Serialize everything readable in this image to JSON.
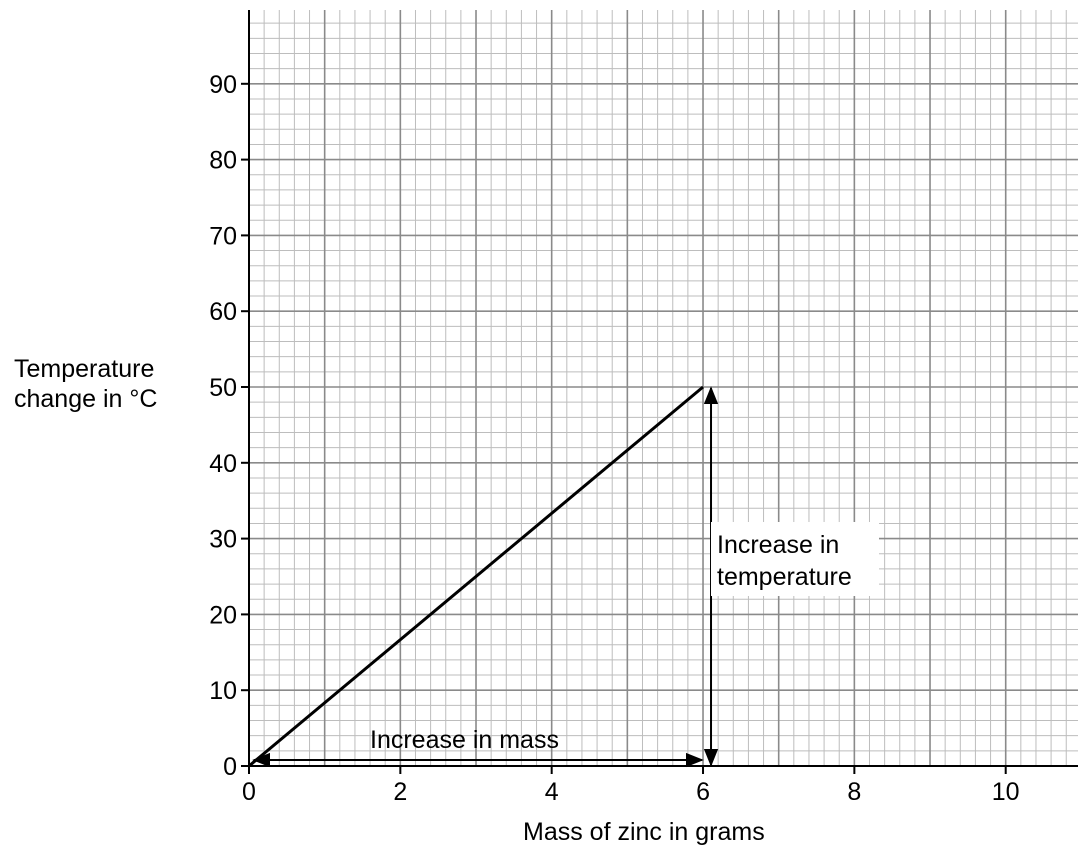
{
  "chart_data": {
    "type": "line",
    "title": "",
    "xlabel": "Mass of zinc in grams",
    "ylabel": [
      "Temperature",
      "change in °C"
    ],
    "xlim": [
      0,
      11
    ],
    "ylim": [
      0,
      100
    ],
    "x_ticks": [
      0,
      2,
      4,
      6,
      8,
      10
    ],
    "y_ticks": [
      0,
      10,
      20,
      30,
      40,
      50,
      60,
      70,
      80,
      90
    ],
    "grid": true,
    "series": [
      {
        "x": [
          0,
          6
        ],
        "y": [
          0,
          50
        ]
      }
    ],
    "annotations": [
      {
        "type": "double-arrow",
        "text": "Increase in mass",
        "from": [
          0,
          0
        ],
        "to": [
          6,
          0
        ]
      },
      {
        "type": "double-arrow",
        "text_lines": [
          "Increase in",
          "temperature"
        ],
        "from": [
          6,
          0
        ],
        "to": [
          6,
          50
        ]
      }
    ],
    "colors": {
      "grid_major": "#8a8a8a",
      "grid_minor": "#bdbdbd",
      "line": "#000000"
    }
  }
}
